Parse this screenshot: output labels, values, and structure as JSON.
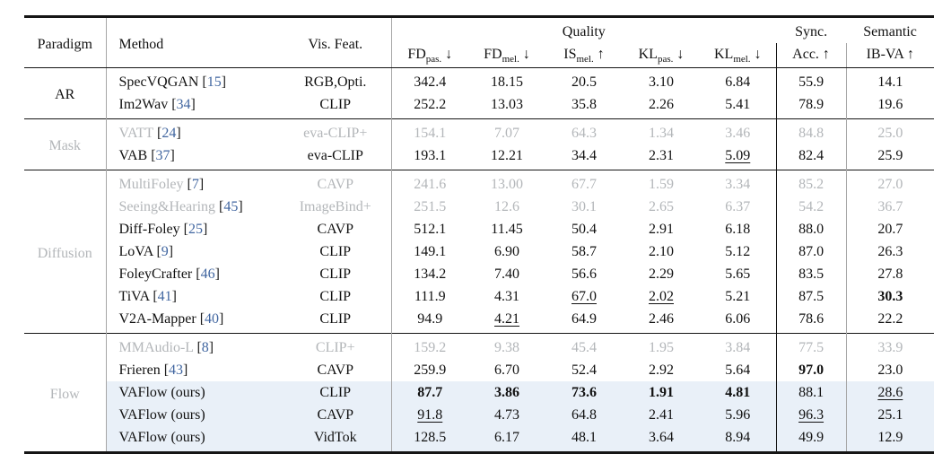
{
  "colors": {
    "citation_blue": "#4166a0",
    "muted_gray": "#b3b6b9",
    "highlight_row_bg": "#e9f0f8",
    "rule_black": "#151515",
    "rule_gray": "#a6a6a6"
  },
  "header": {
    "paradigm": "Paradigm",
    "method": "Method",
    "vis_feat": "Vis. Feat.",
    "quality_group": "Quality",
    "metrics": [
      {
        "base": "FD",
        "sub": "pas.",
        "arrow": "↓"
      },
      {
        "base": "FD",
        "sub": "mel.",
        "arrow": "↓"
      },
      {
        "base": "IS",
        "sub": "mel.",
        "arrow": "↑"
      },
      {
        "base": "KL",
        "sub": "pas.",
        "arrow": "↓"
      },
      {
        "base": "KL",
        "sub": "mel.",
        "arrow": "↓"
      }
    ],
    "sync_top": "Sync.",
    "sync_bottom": "Acc. ↑",
    "semantic_top": "Semantic",
    "semantic_bottom": "IB-VA ↑"
  },
  "sections": [
    {
      "paradigm": "AR",
      "rows": [
        {
          "method": "SpecVQGAN",
          "cite": "15",
          "vis": "RGB,Opti.",
          "gray": false,
          "highlight": false,
          "values": [
            "342.4",
            "18.15",
            "20.5",
            "3.10",
            "6.84",
            "55.9",
            "14.1"
          ],
          "marks": [
            "",
            "",
            "",
            "",
            "",
            "",
            ""
          ]
        },
        {
          "method": "Im2Wav",
          "cite": "34",
          "vis": "CLIP",
          "gray": false,
          "highlight": false,
          "values": [
            "252.2",
            "13.03",
            "35.8",
            "2.26",
            "5.41",
            "78.9",
            "19.6"
          ],
          "marks": [
            "",
            "",
            "",
            "",
            "",
            "",
            ""
          ]
        }
      ]
    },
    {
      "paradigm": "Mask",
      "rows": [
        {
          "method": "VATT",
          "cite": "24",
          "vis": "eva-CLIP+",
          "gray": true,
          "highlight": false,
          "values": [
            "154.1",
            "7.07",
            "64.3",
            "1.34",
            "3.46",
            "84.8",
            "25.0"
          ],
          "marks": [
            "",
            "",
            "",
            "",
            "",
            "",
            ""
          ]
        },
        {
          "method": "VAB",
          "cite": "37",
          "vis": "eva-CLIP",
          "gray": false,
          "highlight": false,
          "values": [
            "193.1",
            "12.21",
            "34.4",
            "2.31",
            "5.09",
            "82.4",
            "25.9"
          ],
          "marks": [
            "",
            "",
            "",
            "",
            "u",
            "",
            ""
          ]
        }
      ]
    },
    {
      "paradigm": "Diffusion",
      "rows": [
        {
          "method": "MultiFoley",
          "cite": "7",
          "vis": "CAVP",
          "gray": true,
          "highlight": false,
          "values": [
            "241.6",
            "13.00",
            "67.7",
            "1.59",
            "3.34",
            "85.2",
            "27.0"
          ],
          "marks": [
            "",
            "",
            "",
            "",
            "",
            "",
            ""
          ]
        },
        {
          "method": "Seeing&Hearing",
          "cite": "45",
          "vis": "ImageBind+",
          "gray": true,
          "highlight": false,
          "values": [
            "251.5",
            "12.6",
            "30.1",
            "2.65",
            "6.37",
            "54.2",
            "36.7"
          ],
          "marks": [
            "",
            "",
            "",
            "",
            "",
            "",
            ""
          ]
        },
        {
          "method": "Diff-Foley",
          "cite": "25",
          "vis": "CAVP",
          "gray": false,
          "highlight": false,
          "values": [
            "512.1",
            "11.45",
            "50.4",
            "2.91",
            "6.18",
            "88.0",
            "20.7"
          ],
          "marks": [
            "",
            "",
            "",
            "",
            "",
            "",
            ""
          ]
        },
        {
          "method": "LoVA",
          "cite": "9",
          "vis": "CLIP",
          "gray": false,
          "highlight": false,
          "values": [
            "149.1",
            "6.90",
            "58.7",
            "2.10",
            "5.12",
            "87.0",
            "26.3"
          ],
          "marks": [
            "",
            "",
            "",
            "",
            "",
            "",
            ""
          ]
        },
        {
          "method": "FoleyCrafter",
          "cite": "46",
          "vis": "CLIP",
          "gray": false,
          "highlight": false,
          "values": [
            "134.2",
            "7.40",
            "56.6",
            "2.29",
            "5.65",
            "83.5",
            "27.8"
          ],
          "marks": [
            "",
            "",
            "",
            "",
            "",
            "",
            ""
          ]
        },
        {
          "method": "TiVA",
          "cite": "41",
          "vis": "CLIP",
          "gray": false,
          "highlight": false,
          "values": [
            "111.9",
            "4.31",
            "67.0",
            "2.02",
            "5.21",
            "87.5",
            "30.3"
          ],
          "marks": [
            "",
            "",
            "u",
            "u",
            "",
            "",
            "b"
          ]
        },
        {
          "method": "V2A-Mapper",
          "cite": "40",
          "vis": "CLIP",
          "gray": false,
          "highlight": false,
          "values": [
            "94.9",
            "4.21",
            "64.9",
            "2.46",
            "6.06",
            "78.6",
            "22.2"
          ],
          "marks": [
            "",
            "u",
            "",
            "",
            "",
            "",
            ""
          ]
        }
      ]
    },
    {
      "paradigm": "Flow",
      "rows": [
        {
          "method": "MMAudio-L",
          "cite": "8",
          "vis": "CLIP+",
          "gray": true,
          "highlight": false,
          "values": [
            "159.2",
            "9.38",
            "45.4",
            "1.95",
            "3.84",
            "77.5",
            "33.9"
          ],
          "marks": [
            "",
            "",
            "",
            "",
            "",
            "",
            ""
          ]
        },
        {
          "method": "Frieren",
          "cite": "43",
          "vis": "CAVP",
          "gray": false,
          "highlight": false,
          "values": [
            "259.9",
            "6.70",
            "52.4",
            "2.92",
            "5.64",
            "97.0",
            "23.0"
          ],
          "marks": [
            "",
            "",
            "",
            "",
            "",
            "b",
            ""
          ]
        },
        {
          "method": "VAFlow (ours)",
          "cite": "",
          "vis": "CLIP",
          "gray": false,
          "highlight": true,
          "values": [
            "87.7",
            "3.86",
            "73.6",
            "1.91",
            "4.81",
            "88.1",
            "28.6"
          ],
          "marks": [
            "b",
            "b",
            "b",
            "b",
            "b",
            "",
            "u"
          ]
        },
        {
          "method": "VAFlow (ours)",
          "cite": "",
          "vis": "CAVP",
          "gray": false,
          "highlight": true,
          "values": [
            "91.8",
            "4.73",
            "64.8",
            "2.41",
            "5.96",
            "96.3",
            "25.1"
          ],
          "marks": [
            "u",
            "",
            "",
            "",
            "",
            "u",
            ""
          ]
        },
        {
          "method": "VAFlow (ours)",
          "cite": "",
          "vis": "VidTok",
          "gray": false,
          "highlight": true,
          "values": [
            "128.5",
            "6.17",
            "48.1",
            "3.64",
            "8.94",
            "49.9",
            "12.9"
          ],
          "marks": [
            "",
            "",
            "",
            "",
            "",
            "",
            ""
          ]
        }
      ]
    }
  ]
}
